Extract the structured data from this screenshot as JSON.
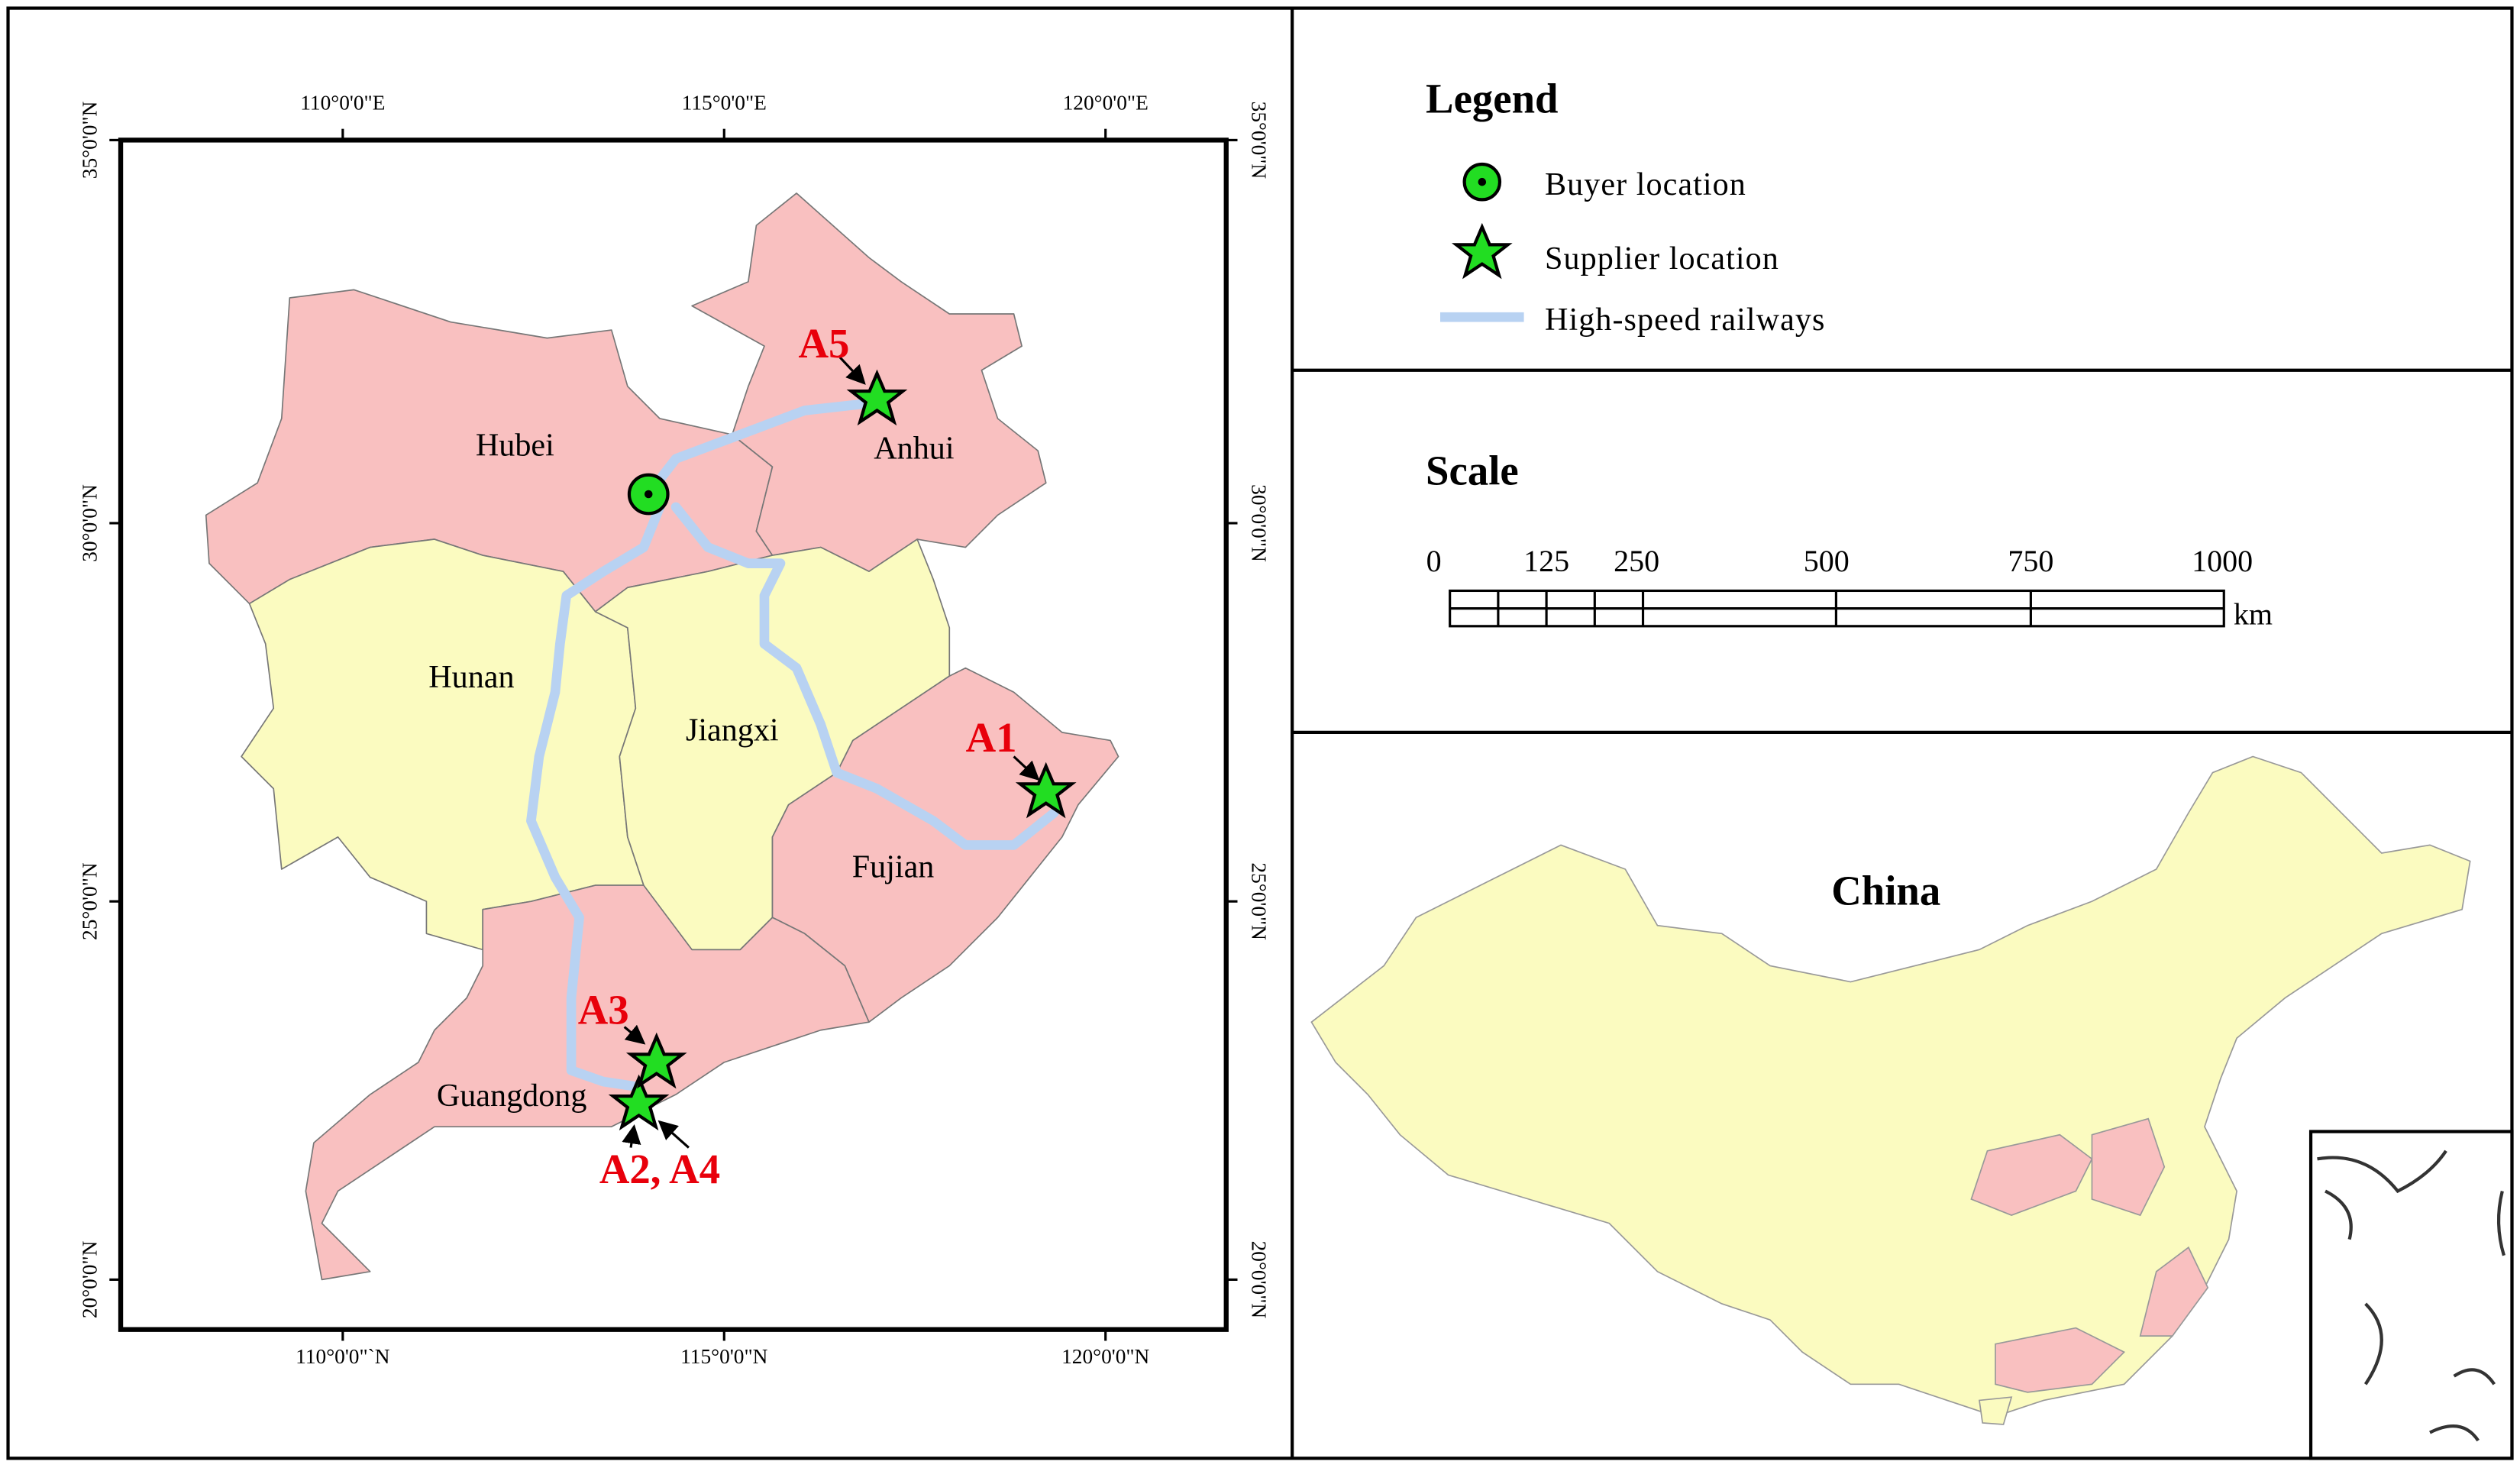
{
  "map": {
    "top_ticks": [
      "110°0'0\"E",
      "115°0'0\"E",
      "120°0'0\"E"
    ],
    "bottom_ticks": [
      "110°0'0\"`N",
      "115°0'0\"N",
      "120°0'0\"N"
    ],
    "left_ticks": [
      "35°0'0\"N",
      "30°0'0\"N",
      "25°0'0\"N",
      "20°0'0\"N"
    ],
    "right_ticks": [
      "35°0'0\"N",
      "30°0'0\"N",
      "25°0'0\"N",
      "20°0'0\"N"
    ],
    "provinces": [
      "Hubei",
      "Anhui",
      "Hunan",
      "Jiangxi",
      "Fujian",
      "Guangdong"
    ],
    "sites": [
      "A1",
      "A2, A4",
      "A3",
      "A5"
    ]
  },
  "legend": {
    "title": "Legend",
    "items": [
      "Buyer location",
      "Supplier location",
      "High-speed railways"
    ]
  },
  "scale": {
    "title": "Scale",
    "ticks": [
      "0",
      "125",
      "250",
      "500",
      "750",
      "1000"
    ],
    "unit": "km"
  },
  "inset": {
    "title": "China"
  }
}
